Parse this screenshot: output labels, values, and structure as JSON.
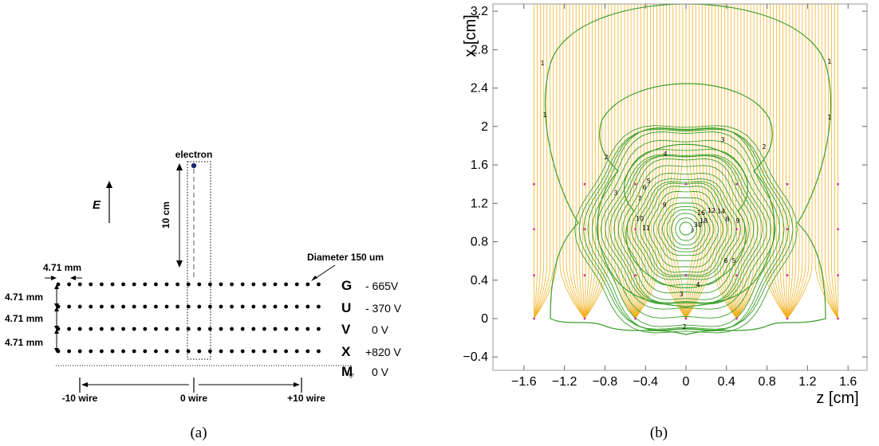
{
  "panel_a": {
    "electron_label": "electron",
    "field_label": "E",
    "drift_length_label": "10 cm",
    "pitch_label": "4.71 mm",
    "diameter_label": "Diameter 150 um",
    "gap_labels": [
      "4.71 mm",
      "4.71 mm",
      "4.71 mm"
    ],
    "planes": [
      {
        "name": "G",
        "voltage": "- 665V"
      },
      {
        "name": "U",
        "voltage": "- 370 V"
      },
      {
        "name": "V",
        "voltage": "0 V"
      },
      {
        "name": "X",
        "voltage": "+820 V"
      },
      {
        "name": "M",
        "voltage": "0 V"
      }
    ],
    "wire_labels": {
      "left": "-10 wire",
      "center": "0 wire",
      "right": "+10 wire"
    },
    "caption": "(a)"
  },
  "panel_b": {
    "x_axis_label": "z [cm]",
    "y_axis_label": "x [cm]",
    "x_ticks": [
      "−1.6",
      "−1.2",
      "−0.8",
      "−0.4",
      "0",
      "0.4",
      "0.8",
      "1.2",
      "1.6"
    ],
    "y_ticks": [
      "−0.4",
      "0",
      "0.4",
      "0.8",
      "1.2",
      "1.6",
      "2",
      "2.4",
      "2.8",
      "3.2"
    ],
    "contour_labels": [
      "1",
      "1",
      "1",
      "1",
      "2",
      "2",
      "2",
      "3",
      "3",
      "4",
      "4",
      "5",
      "5",
      "6",
      "6",
      "7",
      "9",
      "10",
      "11",
      "12",
      "14",
      "16",
      "18",
      "20",
      "30",
      "8",
      "9",
      "3"
    ],
    "field_line_color": "#f0b020",
    "contour_color": "#3aa02a",
    "wire_color": "#cc3399",
    "caption": "(b)"
  }
}
